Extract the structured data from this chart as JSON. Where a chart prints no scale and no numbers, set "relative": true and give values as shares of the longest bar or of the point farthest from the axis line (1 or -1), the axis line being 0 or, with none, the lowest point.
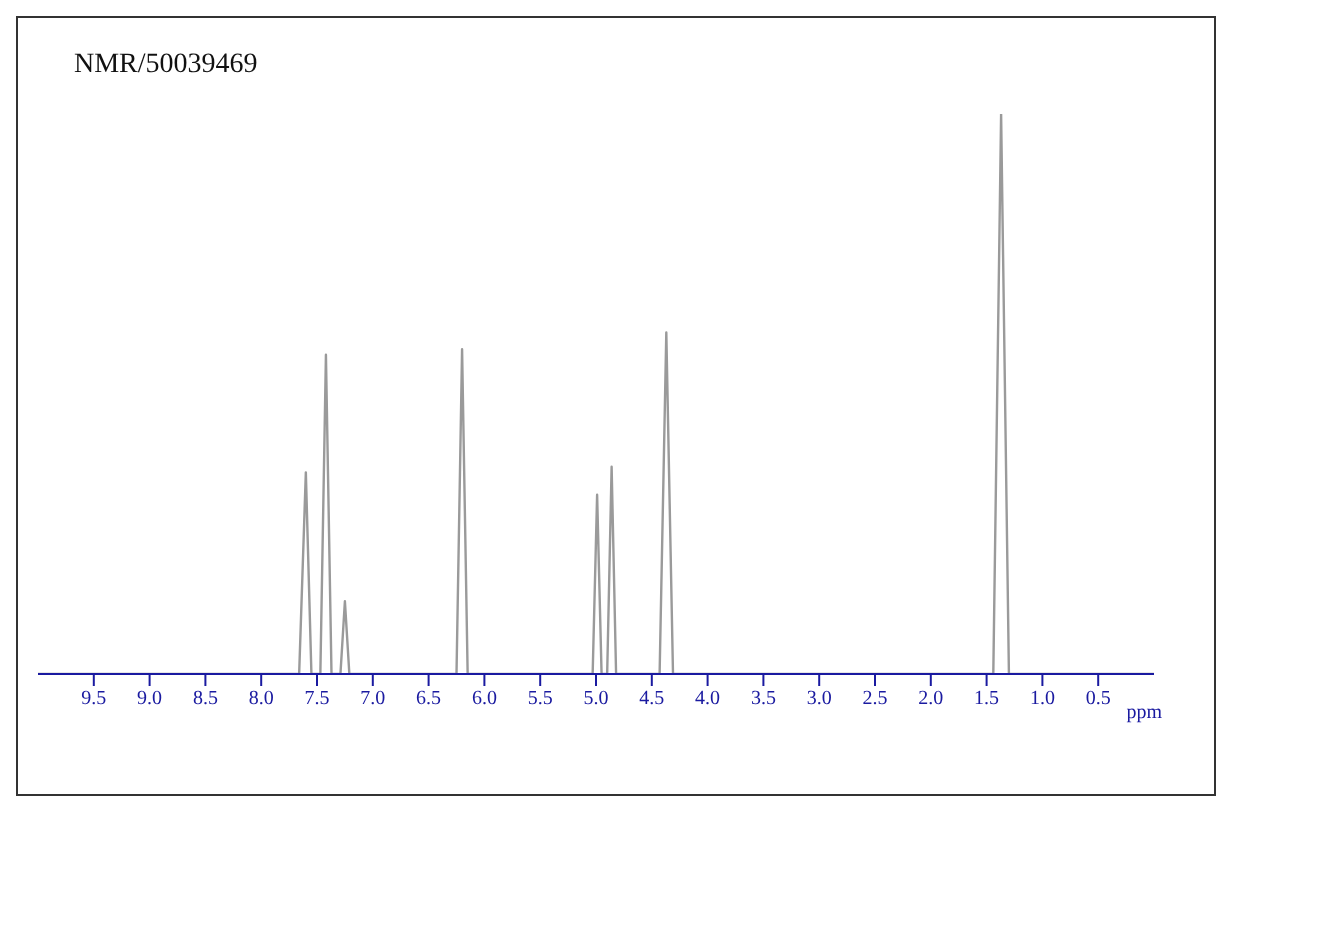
{
  "chart_data": {
    "type": "line",
    "title": "NMR/50039469",
    "xlabel": "ppm",
    "relative": true,
    "x": [
      10.0,
      7.66,
      7.6,
      7.55,
      7.47,
      7.42,
      7.37,
      7.29,
      7.25,
      7.21,
      6.25,
      6.2,
      6.15,
      5.03,
      4.99,
      4.95,
      4.9,
      4.86,
      4.82,
      4.43,
      4.37,
      4.31,
      1.44,
      1.37,
      1.3,
      0.0
    ],
    "series": [
      {
        "color": "#9a9a9a",
        "values": [
          0,
          0,
          0.36,
          0,
          0,
          0.57,
          0,
          0,
          0.13,
          0,
          0,
          0.58,
          0,
          0,
          0.32,
          0,
          0,
          0.37,
          0,
          0,
          0.61,
          0,
          0,
          1,
          0,
          0
        ]
      }
    ],
    "xlim": [
      10.0,
      0.0
    ],
    "xticks": [
      9.5,
      {
        "value": 9,
        "label": "9.0"
      },
      8.5,
      {
        "value": 8,
        "label": "8.0"
      },
      7.5,
      {
        "value": 7,
        "label": "7.0"
      },
      6.5,
      {
        "value": 6,
        "label": "6.0"
      },
      5.5,
      {
        "value": 5,
        "label": "5.0"
      },
      4.5,
      {
        "value": 4,
        "label": "4.0"
      },
      3.5,
      {
        "value": 3,
        "label": "3.0"
      },
      2.5,
      {
        "value": 2,
        "label": "2.0"
      },
      1.5,
      {
        "value": 1,
        "label": "1.0"
      },
      0.5
    ],
    "grid": false,
    "legend": false,
    "marker": "none",
    "line_style": "solid"
  }
}
